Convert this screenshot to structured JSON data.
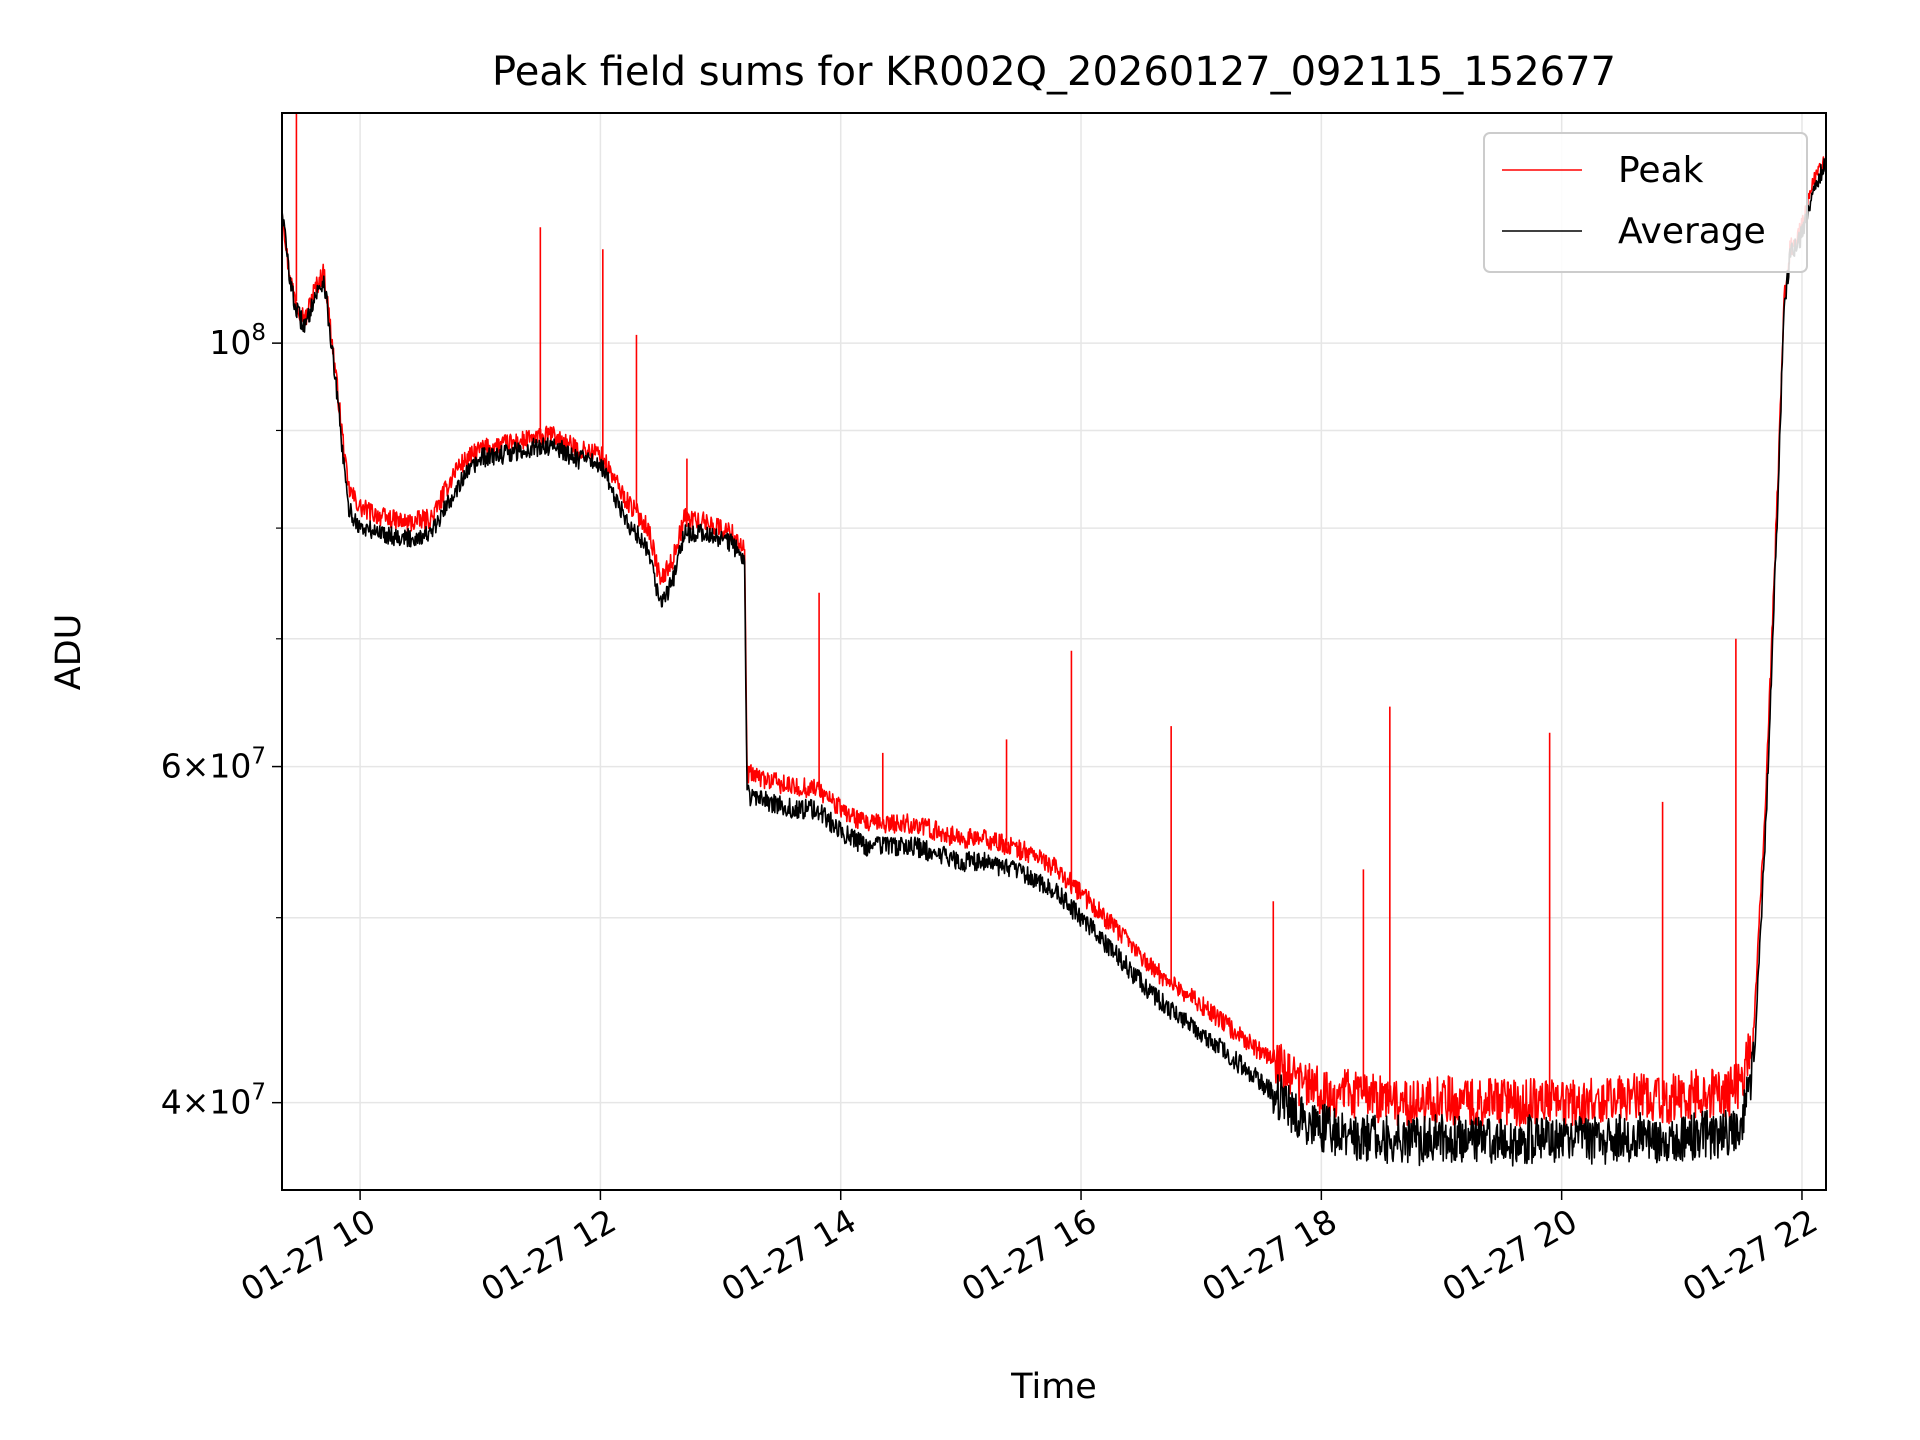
{
  "chart_data": {
    "type": "line",
    "title": "Peak field sums for KR002Q_20260127_092115_152677",
    "xlabel": "Time",
    "ylabel": "ADU",
    "yscale": "log",
    "xlim": [
      9.35,
      22.2
    ],
    "ylim": [
      36000000,
      132000000
    ],
    "grid": true,
    "legend_position": "upper right",
    "x_ticks": [
      {
        "value": 10,
        "label": "01-27 10"
      },
      {
        "value": 12,
        "label": "01-27 12"
      },
      {
        "value": 14,
        "label": "01-27 14"
      },
      {
        "value": 16,
        "label": "01-27 16"
      },
      {
        "value": 18,
        "label": "01-27 18"
      },
      {
        "value": 20,
        "label": "01-27 20"
      },
      {
        "value": 22,
        "label": "01-27 22"
      }
    ],
    "y_ticks": [
      {
        "value": 40000000,
        "mantissa": "4",
        "exponent": "7"
      },
      {
        "value": 60000000,
        "mantissa": "6",
        "exponent": "7"
      },
      {
        "value": 100000000,
        "mantissa": "",
        "exponent": "8"
      }
    ],
    "y_minor_ticks": [
      50000000,
      70000000,
      80000000,
      90000000
    ],
    "series": [
      {
        "name": "Peak",
        "color": "#ff0000",
        "x": [
          9.35,
          9.4,
          9.45,
          9.5,
          9.55,
          9.6,
          9.7,
          9.8,
          9.9,
          10.0,
          10.2,
          10.4,
          10.6,
          10.8,
          11.0,
          11.2,
          11.4,
          11.6,
          11.8,
          12.0,
          12.2,
          12.4,
          12.5,
          12.6,
          12.7,
          12.9,
          13.1,
          13.2,
          13.22,
          13.4,
          13.6,
          13.8,
          14.0,
          14.2,
          14.4,
          14.6,
          14.8,
          15.0,
          15.2,
          15.4,
          15.6,
          15.8,
          16.0,
          16.2,
          16.4,
          16.6,
          16.8,
          17.0,
          17.2,
          17.4,
          17.6,
          17.8,
          18.0,
          18.2,
          18.4,
          18.6,
          18.8,
          19.0,
          19.2,
          19.4,
          19.6,
          19.8,
          20.0,
          20.2,
          20.4,
          20.6,
          20.8,
          21.0,
          21.2,
          21.4,
          21.5,
          21.6,
          21.7,
          21.8,
          21.85,
          21.9,
          22.0,
          22.1,
          22.2
        ],
        "y": [
          118000000,
          110000000,
          106000000,
          104000000,
          103000000,
          106000000,
          109000000,
          96000000,
          84000000,
          82000000,
          81000000,
          80500000,
          81000000,
          86000000,
          88000000,
          88500000,
          89000000,
          89500000,
          88000000,
          87500000,
          83000000,
          80000000,
          75000000,
          77000000,
          81000000,
          80500000,
          79500000,
          78000000,
          59500000,
          59000000,
          58500000,
          58500000,
          57000000,
          56000000,
          56000000,
          56000000,
          55500000,
          55000000,
          55000000,
          54500000,
          54000000,
          53000000,
          51500000,
          50000000,
          48500000,
          47000000,
          46000000,
          45000000,
          44000000,
          43000000,
          42000000,
          41000000,
          40500000,
          40500000,
          40300000,
          40100000,
          40000000,
          40200000,
          40000000,
          40100000,
          40000000,
          40100000,
          40000000,
          40100000,
          40000000,
          40300000,
          40100000,
          40300000,
          40500000,
          40500000,
          41000000,
          44000000,
          58000000,
          85000000,
          105000000,
          112000000,
          115000000,
          122000000,
          125000000
        ]
      },
      {
        "name": "Average",
        "color": "#000000",
        "x": [
          9.35,
          9.4,
          9.45,
          9.5,
          9.55,
          9.6,
          9.7,
          9.8,
          9.9,
          10.0,
          10.2,
          10.4,
          10.6,
          10.8,
          11.0,
          11.2,
          11.4,
          11.6,
          11.8,
          12.0,
          12.2,
          12.4,
          12.5,
          12.6,
          12.7,
          12.9,
          13.1,
          13.2,
          13.22,
          13.4,
          13.6,
          13.8,
          14.0,
          14.2,
          14.4,
          14.6,
          14.8,
          15.0,
          15.2,
          15.4,
          15.6,
          15.8,
          16.0,
          16.2,
          16.4,
          16.6,
          16.8,
          17.0,
          17.2,
          17.4,
          17.6,
          17.8,
          18.0,
          18.2,
          18.4,
          18.6,
          18.8,
          19.0,
          19.2,
          19.4,
          19.6,
          19.8,
          20.0,
          20.2,
          20.4,
          20.6,
          20.8,
          21.0,
          21.2,
          21.4,
          21.5,
          21.6,
          21.7,
          21.8,
          21.85,
          21.9,
          22.0,
          22.1,
          22.2
        ],
        "y": [
          118000000,
          110000000,
          105000000,
          103000000,
          102000000,
          105000000,
          108000000,
          95000000,
          82000000,
          80000000,
          79500000,
          79000000,
          79500000,
          84000000,
          87000000,
          87500000,
          88000000,
          88500000,
          87000000,
          86500000,
          81000000,
          78000000,
          73000000,
          75000000,
          79500000,
          79500000,
          78500000,
          77000000,
          58000000,
          57500000,
          57000000,
          57000000,
          55500000,
          54500000,
          54500000,
          54500000,
          54000000,
          53500000,
          53500000,
          53000000,
          52500000,
          51500000,
          50000000,
          48500000,
          47000000,
          45500000,
          44500000,
          43500000,
          42500000,
          41500000,
          40500000,
          39500000,
          38800000,
          38500000,
          38400000,
          38300000,
          38200000,
          38300000,
          38200000,
          38300000,
          38200000,
          38300000,
          38200000,
          38300000,
          38200000,
          38400000,
          38300000,
          38400000,
          38500000,
          38600000,
          39000000,
          42000000,
          56000000,
          83000000,
          104000000,
          111000000,
          114000000,
          121000000,
          124000000
        ]
      }
    ],
    "spikes": [
      {
        "series": "Peak",
        "x": 9.47,
        "y": 132000000
      },
      {
        "series": "Peak",
        "x": 11.5,
        "y": 115000000
      },
      {
        "series": "Peak",
        "x": 12.02,
        "y": 112000000
      },
      {
        "series": "Peak",
        "x": 12.3,
        "y": 101000000
      },
      {
        "series": "Peak",
        "x": 12.72,
        "y": 87000000
      },
      {
        "series": "Peak",
        "x": 13.82,
        "y": 74000000
      },
      {
        "series": "Peak",
        "x": 14.35,
        "y": 61000000
      },
      {
        "series": "Peak",
        "x": 15.38,
        "y": 62000000
      },
      {
        "series": "Peak",
        "x": 15.92,
        "y": 69000000
      },
      {
        "series": "Peak",
        "x": 16.75,
        "y": 63000000
      },
      {
        "series": "Peak",
        "x": 17.6,
        "y": 51000000
      },
      {
        "series": "Peak",
        "x": 18.35,
        "y": 53000000
      },
      {
        "series": "Peak",
        "x": 18.57,
        "y": 64500000
      },
      {
        "series": "Peak",
        "x": 19.9,
        "y": 62500000
      },
      {
        "series": "Peak",
        "x": 20.84,
        "y": 57500000
      },
      {
        "series": "Peak",
        "x": 21.45,
        "y": 70000000
      }
    ]
  }
}
